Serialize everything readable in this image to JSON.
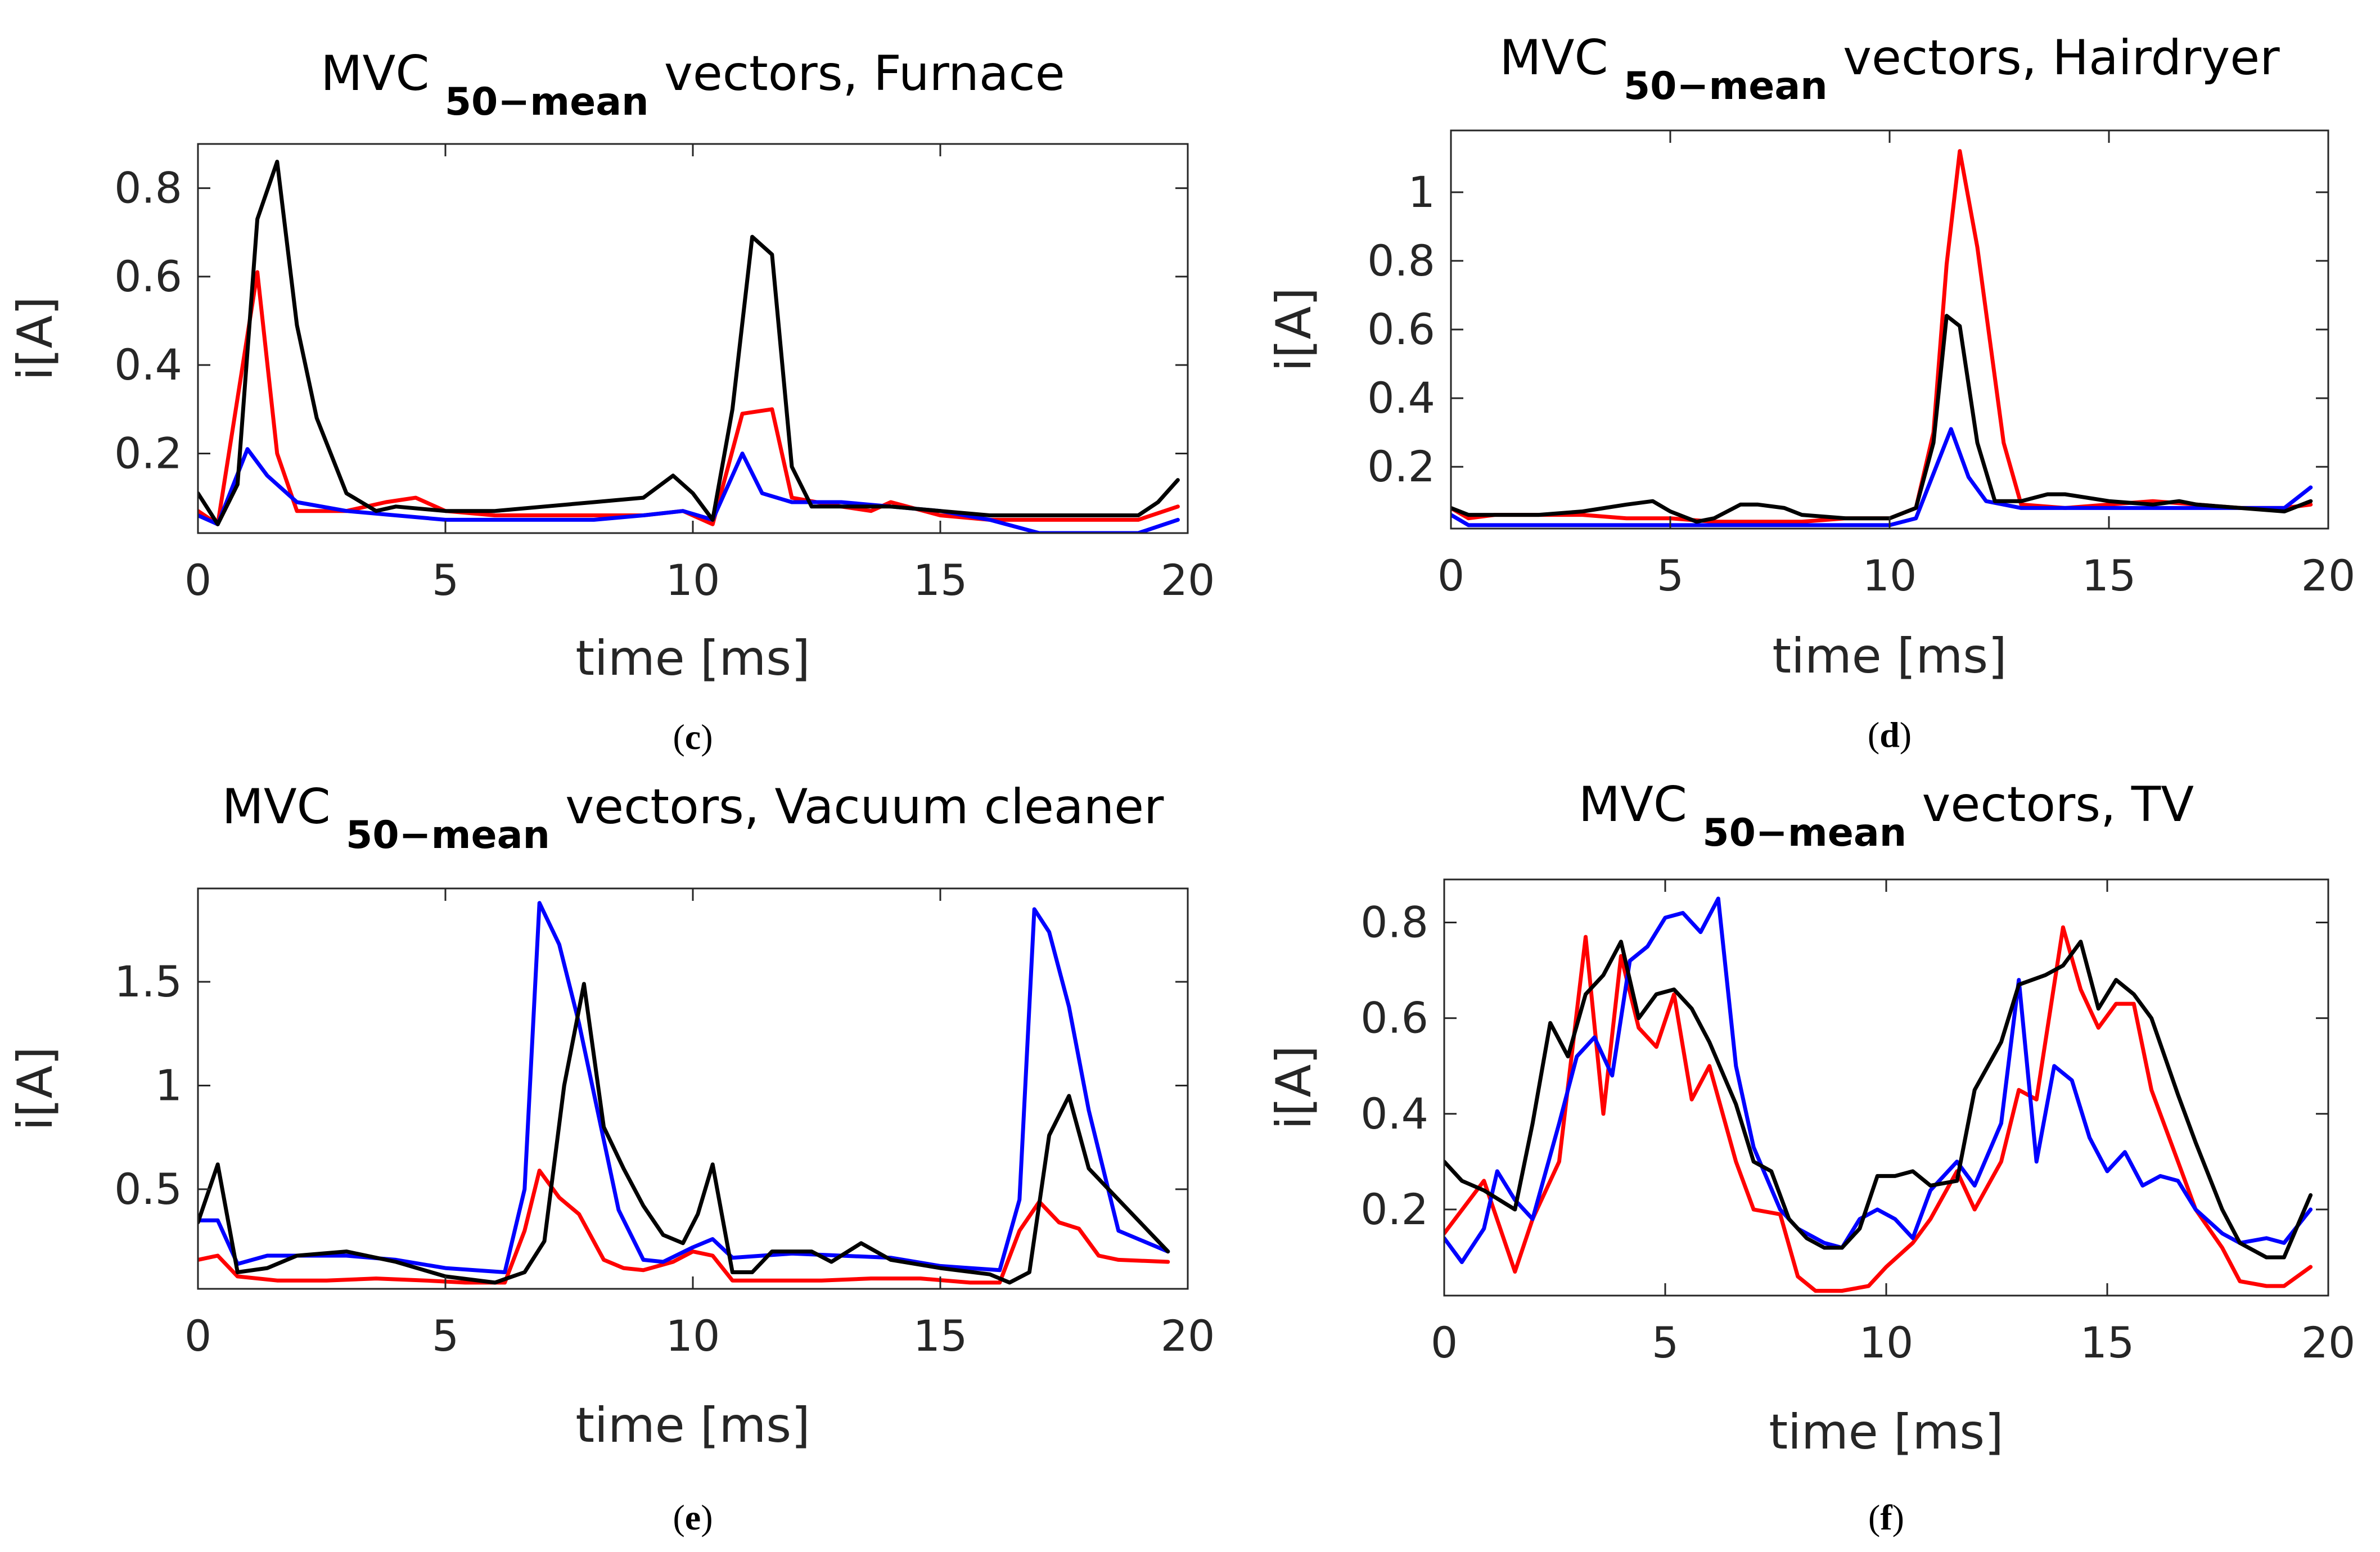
{
  "chart_data": [
    {
      "type": "line",
      "panel": "c",
      "caption": "(c)",
      "title_main": "MVC",
      "title_sub": "50−mean",
      "title_rest": "vectors, Furnace",
      "xlabel": "time [ms]",
      "ylabel": "i[A]",
      "xlim": [
        0,
        20
      ],
      "ylim": [
        0.02,
        0.9
      ],
      "xticks": [
        "0",
        "5",
        "10",
        "15",
        "20"
      ],
      "yticks": [
        "0.2",
        "0.4",
        "0.6",
        "0.8"
      ],
      "grid": false,
      "series": [
        {
          "name": "red",
          "color": "#ff0000",
          "x": [
            0,
            0.4,
            1.2,
            1.6,
            2.0,
            3.0,
            3.8,
            4.4,
            5.0,
            6.0,
            7.0,
            8.0,
            9.0,
            9.8,
            10.4,
            11.0,
            11.6,
            12.0,
            13.0,
            13.6,
            14.0,
            15.0,
            16.0,
            17.0,
            18.0,
            19.0,
            19.8
          ],
          "y": [
            0.07,
            0.04,
            0.61,
            0.2,
            0.07,
            0.07,
            0.09,
            0.1,
            0.07,
            0.06,
            0.06,
            0.06,
            0.06,
            0.07,
            0.04,
            0.29,
            0.3,
            0.1,
            0.08,
            0.07,
            0.09,
            0.06,
            0.05,
            0.05,
            0.05,
            0.05,
            0.08
          ]
        },
        {
          "name": "blue",
          "color": "#0000ff",
          "x": [
            0,
            0.4,
            1.0,
            1.4,
            2.0,
            3.0,
            4.0,
            5.0,
            6.0,
            7.0,
            8.0,
            9.0,
            9.8,
            10.4,
            11.0,
            11.4,
            12.0,
            13.0,
            14.0,
            15.0,
            16.0,
            17.0,
            18.0,
            19.0,
            19.8
          ],
          "y": [
            0.06,
            0.04,
            0.21,
            0.15,
            0.09,
            0.07,
            0.06,
            0.05,
            0.05,
            0.05,
            0.05,
            0.06,
            0.07,
            0.05,
            0.2,
            0.11,
            0.09,
            0.09,
            0.08,
            0.07,
            0.05,
            0.02,
            0.02,
            0.02,
            0.05
          ]
        },
        {
          "name": "black",
          "color": "#000000",
          "x": [
            0,
            0.4,
            0.8,
            1.2,
            1.6,
            2.0,
            2.4,
            3.0,
            3.6,
            4.0,
            5.0,
            6.0,
            7.0,
            8.0,
            9.0,
            9.6,
            10.0,
            10.4,
            10.8,
            11.2,
            11.6,
            12.0,
            12.4,
            13.0,
            14.0,
            15.0,
            16.0,
            17.0,
            18.0,
            19.0,
            19.4,
            19.8
          ],
          "y": [
            0.11,
            0.04,
            0.13,
            0.73,
            0.86,
            0.49,
            0.28,
            0.11,
            0.07,
            0.08,
            0.07,
            0.07,
            0.08,
            0.09,
            0.1,
            0.15,
            0.11,
            0.05,
            0.3,
            0.69,
            0.65,
            0.17,
            0.08,
            0.08,
            0.08,
            0.07,
            0.06,
            0.06,
            0.06,
            0.06,
            0.09,
            0.14
          ]
        }
      ]
    },
    {
      "type": "line",
      "panel": "d",
      "caption": "(d)",
      "title_main": "MVC",
      "title_sub": "50−mean",
      "title_rest": "vectors, Hairdryer",
      "xlabel": "time [ms]",
      "ylabel": "i[A]",
      "xlim": [
        0,
        20
      ],
      "ylim": [
        0.02,
        1.18
      ],
      "xticks": [
        "0",
        "5",
        "10",
        "15",
        "20"
      ],
      "yticks": [
        "0.2",
        "0.4",
        "0.6",
        "0.8",
        "1"
      ],
      "grid": false,
      "series": [
        {
          "name": "red",
          "color": "#ff0000",
          "x": [
            0,
            0.4,
            1.0,
            2.0,
            3.0,
            4.0,
            5.0,
            6.0,
            7.0,
            8.0,
            9.0,
            10.0,
            10.6,
            11.0,
            11.3,
            11.6,
            12.0,
            12.6,
            13.0,
            14.0,
            15.0,
            16.0,
            17.0,
            18.0,
            19.0,
            19.6
          ],
          "y": [
            0.08,
            0.05,
            0.06,
            0.06,
            0.06,
            0.05,
            0.05,
            0.04,
            0.04,
            0.04,
            0.05,
            0.05,
            0.08,
            0.3,
            0.79,
            1.12,
            0.84,
            0.27,
            0.09,
            0.08,
            0.09,
            0.1,
            0.09,
            0.08,
            0.08,
            0.09
          ]
        },
        {
          "name": "blue",
          "color": "#0000ff",
          "x": [
            0,
            0.4,
            1.0,
            2.0,
            3.0,
            4.0,
            5.0,
            6.0,
            7.0,
            8.0,
            9.0,
            10.0,
            10.6,
            11.0,
            11.4,
            11.8,
            12.2,
            12.6,
            13.0,
            14.0,
            15.0,
            16.0,
            17.0,
            18.0,
            19.0,
            19.6
          ],
          "y": [
            0.06,
            0.03,
            0.03,
            0.03,
            0.03,
            0.03,
            0.03,
            0.03,
            0.03,
            0.03,
            0.03,
            0.03,
            0.05,
            0.18,
            0.31,
            0.17,
            0.1,
            0.09,
            0.08,
            0.08,
            0.08,
            0.08,
            0.08,
            0.08,
            0.08,
            0.14
          ]
        },
        {
          "name": "black",
          "color": "#000000",
          "x": [
            0,
            0.4,
            1.0,
            2.0,
            3.0,
            4.0,
            4.6,
            5.0,
            5.6,
            6.0,
            6.6,
            7.0,
            7.6,
            8.0,
            9.0,
            10.0,
            10.6,
            11.0,
            11.3,
            11.6,
            12.0,
            12.4,
            13.0,
            13.6,
            14.0,
            15.0,
            16.0,
            16.6,
            17.0,
            18.0,
            19.0,
            19.6
          ],
          "y": [
            0.08,
            0.06,
            0.06,
            0.06,
            0.07,
            0.09,
            0.1,
            0.07,
            0.04,
            0.05,
            0.09,
            0.09,
            0.08,
            0.06,
            0.05,
            0.05,
            0.08,
            0.27,
            0.64,
            0.61,
            0.27,
            0.1,
            0.1,
            0.12,
            0.12,
            0.1,
            0.09,
            0.1,
            0.09,
            0.08,
            0.07,
            0.1
          ]
        }
      ]
    },
    {
      "type": "line",
      "panel": "e",
      "caption": "(e)",
      "title_main": "MVC",
      "title_sub": "50−mean",
      "title_rest": "vectors, Vacuum cleaner",
      "xlabel": "time [ms]",
      "ylabel": "i[A]",
      "xlim": [
        0,
        20
      ],
      "ylim": [
        0.02,
        1.95
      ],
      "xticks": [
        "0",
        "5",
        "10",
        "15",
        "20"
      ],
      "yticks": [
        "0.5",
        "1",
        "1.5"
      ],
      "grid": false,
      "series": [
        {
          "name": "red",
          "color": "#ff0000",
          "x": [
            0,
            0.4,
            0.8,
            1.6,
            2.6,
            3.6,
            4.6,
            5.4,
            6.2,
            6.6,
            6.9,
            7.3,
            7.7,
            8.2,
            8.6,
            9.0,
            9.6,
            10.0,
            10.4,
            10.8,
            11.6,
            12.6,
            13.6,
            14.6,
            15.6,
            16.2,
            16.6,
            17.0,
            17.4,
            17.8,
            18.2,
            18.6,
            19.6
          ],
          "y": [
            0.16,
            0.18,
            0.08,
            0.06,
            0.06,
            0.07,
            0.06,
            0.05,
            0.05,
            0.3,
            0.59,
            0.46,
            0.38,
            0.16,
            0.12,
            0.11,
            0.15,
            0.2,
            0.18,
            0.06,
            0.06,
            0.06,
            0.07,
            0.07,
            0.05,
            0.05,
            0.3,
            0.44,
            0.34,
            0.31,
            0.18,
            0.16,
            0.15
          ]
        },
        {
          "name": "blue",
          "color": "#0000ff",
          "x": [
            0,
            0.4,
            0.8,
            1.4,
            2.0,
            3.0,
            4.0,
            5.0,
            6.2,
            6.6,
            6.9,
            7.3,
            7.7,
            8.1,
            8.5,
            9.0,
            9.4,
            10.0,
            10.4,
            10.8,
            11.4,
            12.0,
            13.0,
            14.0,
            15.0,
            15.6,
            16.2,
            16.6,
            16.9,
            17.2,
            17.6,
            18.0,
            18.6,
            19.6
          ],
          "y": [
            0.35,
            0.35,
            0.14,
            0.18,
            0.18,
            0.18,
            0.16,
            0.12,
            0.1,
            0.5,
            1.88,
            1.68,
            1.3,
            0.85,
            0.4,
            0.16,
            0.15,
            0.22,
            0.26,
            0.17,
            0.18,
            0.19,
            0.18,
            0.17,
            0.13,
            0.12,
            0.11,
            0.45,
            1.85,
            1.74,
            1.38,
            0.88,
            0.3,
            0.2
          ]
        },
        {
          "name": "black",
          "color": "#000000",
          "x": [
            0,
            0.4,
            0.8,
            1.4,
            2.0,
            3.0,
            4.0,
            5.0,
            6.0,
            6.6,
            7.0,
            7.4,
            7.8,
            8.2,
            8.6,
            9.0,
            9.4,
            9.8,
            10.1,
            10.4,
            10.8,
            11.2,
            11.6,
            12.4,
            12.8,
            13.4,
            14.0,
            15.0,
            16.0,
            16.4,
            16.8,
            17.2,
            17.6,
            18.0,
            18.6,
            19.6
          ],
          "y": [
            0.34,
            0.62,
            0.1,
            0.12,
            0.18,
            0.2,
            0.15,
            0.08,
            0.05,
            0.1,
            0.25,
            1.0,
            1.49,
            0.8,
            0.6,
            0.42,
            0.28,
            0.24,
            0.38,
            0.62,
            0.1,
            0.1,
            0.2,
            0.2,
            0.15,
            0.24,
            0.16,
            0.12,
            0.09,
            0.05,
            0.1,
            0.76,
            0.95,
            0.6,
            0.45,
            0.2
          ]
        }
      ]
    },
    {
      "type": "line",
      "panel": "f",
      "caption": "(f)",
      "title_main": "MVC",
      "title_sub": "50−mean",
      "title_rest": "vectors, TV",
      "xlabel": "time [ms]",
      "ylabel": "i[A]",
      "xlim": [
        0,
        20
      ],
      "ylim": [
        0.02,
        0.89
      ],
      "xticks": [
        "0",
        "5",
        "10",
        "15",
        "20"
      ],
      "yticks": [
        "0.2",
        "0.4",
        "0.6",
        "0.8"
      ],
      "grid": false,
      "series": [
        {
          "name": "red",
          "color": "#ff0000",
          "x": [
            0,
            0.9,
            1.6,
            2.0,
            2.6,
            3.2,
            3.6,
            4.0,
            4.4,
            4.8,
            5.2,
            5.6,
            6.0,
            6.6,
            7.0,
            7.6,
            8.0,
            8.4,
            9.0,
            9.6,
            10.0,
            10.6,
            11.0,
            11.6,
            12.0,
            12.6,
            13.0,
            13.4,
            14.0,
            14.4,
            14.8,
            15.2,
            15.6,
            16.0,
            16.6,
            17.0,
            17.6,
            18.0,
            18.6,
            19.0,
            19.6
          ],
          "y": [
            0.15,
            0.26,
            0.07,
            0.18,
            0.3,
            0.77,
            0.4,
            0.73,
            0.58,
            0.54,
            0.65,
            0.43,
            0.5,
            0.3,
            0.2,
            0.19,
            0.06,
            0.03,
            0.03,
            0.04,
            0.08,
            0.13,
            0.18,
            0.28,
            0.2,
            0.3,
            0.45,
            0.43,
            0.79,
            0.66,
            0.58,
            0.63,
            0.63,
            0.45,
            0.3,
            0.2,
            0.12,
            0.05,
            0.04,
            0.04,
            0.08
          ]
        },
        {
          "name": "blue",
          "color": "#0000ff",
          "x": [
            0,
            0.4,
            0.9,
            1.2,
            1.6,
            2.0,
            2.6,
            3.0,
            3.4,
            3.8,
            4.2,
            4.6,
            5.0,
            5.4,
            5.8,
            6.2,
            6.6,
            7.0,
            7.6,
            8.0,
            8.6,
            9.0,
            9.4,
            9.8,
            10.2,
            10.6,
            11.0,
            11.6,
            12.0,
            12.6,
            13.0,
            13.4,
            13.8,
            14.2,
            14.6,
            15.0,
            15.4,
            15.8,
            16.2,
            16.6,
            17.0,
            17.6,
            18.0,
            18.6,
            19.0,
            19.6
          ],
          "y": [
            0.14,
            0.09,
            0.16,
            0.28,
            0.22,
            0.18,
            0.38,
            0.52,
            0.56,
            0.48,
            0.72,
            0.75,
            0.81,
            0.82,
            0.78,
            0.85,
            0.5,
            0.33,
            0.2,
            0.16,
            0.13,
            0.12,
            0.18,
            0.2,
            0.18,
            0.14,
            0.24,
            0.3,
            0.25,
            0.38,
            0.68,
            0.3,
            0.5,
            0.47,
            0.35,
            0.28,
            0.32,
            0.25,
            0.27,
            0.26,
            0.2,
            0.15,
            0.13,
            0.14,
            0.13,
            0.2
          ]
        },
        {
          "name": "black",
          "color": "#000000",
          "x": [
            0,
            0.4,
            0.9,
            1.6,
            2.0,
            2.4,
            2.8,
            3.2,
            3.6,
            4.0,
            4.4,
            4.8,
            5.2,
            5.6,
            6.0,
            6.6,
            7.0,
            7.4,
            7.8,
            8.2,
            8.6,
            9.0,
            9.4,
            9.8,
            10.2,
            10.6,
            11.0,
            11.6,
            12.0,
            12.6,
            13.0,
            13.6,
            14.0,
            14.4,
            14.8,
            15.2,
            15.6,
            16.0,
            16.6,
            17.0,
            17.6,
            18.0,
            18.6,
            19.0,
            19.6
          ],
          "y": [
            0.3,
            0.26,
            0.24,
            0.2,
            0.38,
            0.59,
            0.52,
            0.65,
            0.69,
            0.76,
            0.6,
            0.65,
            0.66,
            0.62,
            0.55,
            0.42,
            0.3,
            0.28,
            0.18,
            0.14,
            0.12,
            0.12,
            0.16,
            0.27,
            0.27,
            0.28,
            0.25,
            0.26,
            0.45,
            0.55,
            0.67,
            0.69,
            0.71,
            0.76,
            0.62,
            0.68,
            0.65,
            0.6,
            0.44,
            0.34,
            0.2,
            0.13,
            0.1,
            0.1,
            0.23
          ]
        }
      ]
    }
  ]
}
